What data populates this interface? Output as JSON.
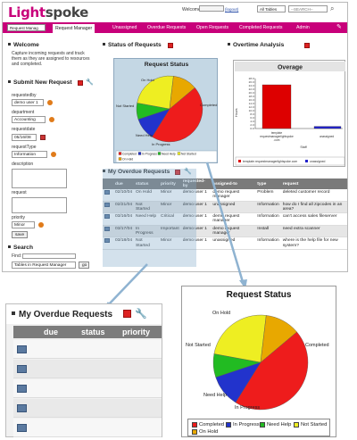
{
  "header": {
    "logo_part1": "Light",
    "logo_part2": "spoke",
    "welcome_label": "Welcome",
    "logout_label": "(logout)",
    "search_scope": "All Tables",
    "search_placeholder": "--SEARCH--"
  },
  "tabs": {
    "app_selector": "Request Manag",
    "items": [
      "Request Manager",
      "Unassigned",
      "Overdue Requests",
      "Open Requests",
      "Completed Requests",
      "Admin"
    ]
  },
  "sidebar": {
    "welcome_title": "Welcome",
    "welcome_text": [
      "Capture incoming requests and track",
      "them as they are assigned to resources",
      "and completed."
    ],
    "submit_title": "Submit New Request",
    "requestedby_label": "requestedby",
    "requestedby_value": "demo user 1",
    "department_label": "department",
    "department_value": "Accounting",
    "requestdate_label": "requestdate",
    "requestdate_value": "05/16/08",
    "requesttype_label": "requestType",
    "requesttype_value": "Information",
    "description_label": "description",
    "request_label": "request",
    "priority_label": "priority",
    "priority_value": "Minor",
    "save_label": "save",
    "search_title": "Search",
    "find_label": "Find:",
    "search_scope": "Tables in Request Manager",
    "go_label": "go"
  },
  "status_section": {
    "title": "Status of Requests"
  },
  "overtime_section": {
    "title": "Overtime Analysis"
  },
  "pie_chart": {
    "title": "Request Status",
    "labels": {
      "on_hold": "On Hold",
      "not_started": "Not Started",
      "need_help": "Need Help",
      "in_progress": "In Progress",
      "completed": "Completed"
    },
    "legend": [
      "Completed",
      "In Progress",
      "Need Help",
      "Not Started",
      "On Hold"
    ],
    "colors": [
      "#ee1c1c",
      "#2233cc",
      "#22bb22",
      "#eeee22",
      "#e8a800"
    ]
  },
  "overage_chart": {
    "title": "Overage",
    "ylabel": "Hours",
    "xlabel": "Staff",
    "yticks": [
      "28.0",
      "26.0",
      "24.0",
      "22.0",
      "20.0",
      "18.0",
      "16.0",
      "14.0",
      "12.0",
      "10.0",
      "8.0",
      "6.0",
      "4.0",
      "2.0",
      "0.0"
    ],
    "bar1_label": [
      "template",
      "requestmanagerlightspoke",
      ".com"
    ],
    "bar2_label": "unassigned",
    "legend": [
      "template.requestmanagerlightspoke.com",
      "unassigned"
    ]
  },
  "chart_data": [
    {
      "type": "pie",
      "title": "Request Status",
      "categories": [
        "Completed",
        "In Progress",
        "Need Help",
        "Not Started",
        "On Hold"
      ],
      "values": [
        45,
        11,
        8,
        24,
        12
      ],
      "legend": "bottom"
    },
    {
      "type": "bar",
      "title": "Overage",
      "xlabel": "Staff",
      "ylabel": "Hours",
      "categories": [
        "template.requestmanagerlightspoke.com",
        "unassigned"
      ],
      "values": [
        24.5,
        1.2
      ],
      "ylim": [
        0,
        28
      ],
      "colors": [
        "#dd0000",
        "#2222cc"
      ],
      "legend": "bottom"
    }
  ],
  "overdue": {
    "title": "My Overdue Requests",
    "columns": [
      "due",
      "status",
      "priority",
      "requested-by",
      "assigned-to",
      "type",
      "request"
    ],
    "rows": [
      [
        "02/10/04",
        "On Hold",
        "Minor",
        "demo user 1",
        "demo request manager",
        "Problem",
        "deleted customer record"
      ],
      [
        "02/21/04",
        "Not Started",
        "Minor",
        "demo user 1",
        "unassigned",
        "Information",
        "how do I find all zipcodes in an area?"
      ],
      [
        "03/16/04",
        "Need Help",
        "Critical",
        "demo user 1",
        "demo request manager",
        "Information",
        "can't access sales fileserver"
      ],
      [
        "03/17/04",
        "In Progress",
        "Important",
        "demo user 1",
        "demo request manager",
        "Install",
        "need extra scanner"
      ],
      [
        "03/18/04",
        "Not Started",
        "Minor",
        "demo user 1",
        "unassigned",
        "Information",
        "where is the help file for new system?"
      ]
    ]
  },
  "zoom_table": {
    "title": "My Overdue Requests",
    "columns": [
      "due",
      "status",
      "priority"
    ]
  },
  "zoom_pie": {
    "title": "Request Status"
  }
}
